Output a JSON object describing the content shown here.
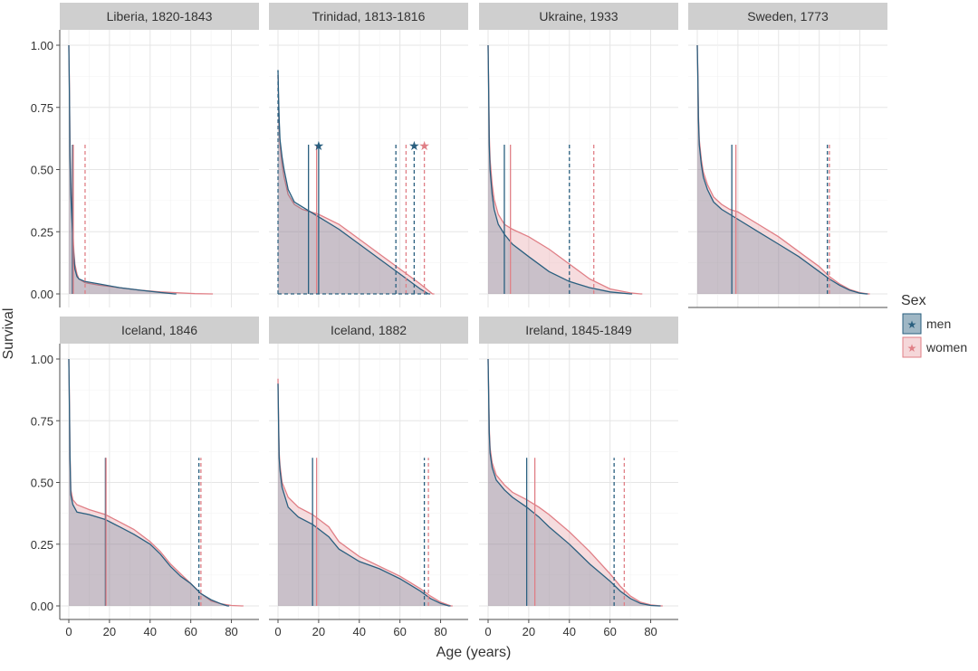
{
  "colors": {
    "men": "#2a5f7f",
    "women": "#e07f86",
    "men_fill": "#2a5f7f",
    "women_fill": "#e59aa0",
    "strip": "#cfcfcf",
    "grid": "#e5e5e5",
    "axis": "#4d4d4d",
    "text": "#333333"
  },
  "chart_data": {
    "type": "area",
    "title": "",
    "xlabel": "Age (years)",
    "ylabel": "Survival",
    "xlim": [
      0,
      90
    ],
    "ylim": [
      0,
      1
    ],
    "xticks": [
      0,
      20,
      40,
      60,
      80
    ],
    "xtick_labels": [
      "0",
      "20",
      "40",
      "60",
      "80"
    ],
    "yticks": [
      0,
      0.25,
      0.5,
      0.75,
      1
    ],
    "ytick_labels": [
      "0.00",
      "0.25",
      "0.50",
      "0.75",
      "1.00"
    ],
    "legend": {
      "title": "Sex",
      "placement": "right",
      "entries": [
        {
          "key": "men",
          "label": "men"
        },
        {
          "key": "women",
          "label": "women"
        }
      ]
    },
    "panels": [
      {
        "title": "Liberia, 1820-1843",
        "series": [
          {
            "name": "men",
            "x": [
              0,
              0.3,
              0.6,
              1,
              1.5,
              2,
              2.5,
              3,
              4,
              5,
              8,
              15,
              25,
              35,
              45,
              52
            ],
            "y": [
              1,
              0.8,
              0.55,
              0.4,
              0.3,
              0.22,
              0.15,
              0.1,
              0.07,
              0.06,
              0.05,
              0.04,
              0.025,
              0.015,
              0.006,
              0
            ]
          },
          {
            "name": "women",
            "x": [
              0,
              0.3,
              0.6,
              1,
              1.5,
              2,
              2.5,
              3,
              4,
              5,
              8,
              15,
              25,
              35,
              45,
              55,
              62,
              70
            ],
            "y": [
              1,
              0.82,
              0.6,
              0.45,
              0.33,
              0.25,
              0.17,
              0.12,
              0.08,
              0.06,
              0.045,
              0.035,
              0.025,
              0.015,
              0.008,
              0.004,
              0.001,
              0
            ]
          }
        ],
        "markers": [
          {
            "sex": "men",
            "stat": "median",
            "age": 1.8,
            "style": "solid"
          },
          {
            "sex": "women",
            "stat": "median",
            "age": 2.2,
            "style": "solid"
          },
          {
            "sex": "women",
            "stat": "mean",
            "age": 8,
            "style": "dashed"
          }
        ]
      },
      {
        "title": "Trinidad, 1813-1816",
        "series": [
          {
            "name": "men",
            "x": [
              0,
              0.3,
              0.6,
              1,
              2,
              3,
              5,
              8,
              12,
              16,
              20,
              30,
              40,
              50,
              60,
              70,
              74
            ],
            "y": [
              0.9,
              0.78,
              0.7,
              0.62,
              0.55,
              0.5,
              0.42,
              0.37,
              0.35,
              0.33,
              0.31,
              0.26,
              0.2,
              0.14,
              0.08,
              0.02,
              0
            ]
          },
          {
            "name": "women",
            "x": [
              0,
              0.3,
              0.6,
              1,
              2,
              3,
              5,
              8,
              12,
              16,
              20,
              30,
              40,
              50,
              60,
              70,
              76
            ],
            "y": [
              0.88,
              0.76,
              0.68,
              0.6,
              0.52,
              0.47,
              0.4,
              0.36,
              0.34,
              0.33,
              0.32,
              0.28,
              0.22,
              0.16,
              0.1,
              0.04,
              0
            ]
          }
        ],
        "markers": [
          {
            "sex": "men",
            "stat": "median",
            "age": 15,
            "style": "solid"
          },
          {
            "sex": "women",
            "stat": "median",
            "age": 19,
            "style": "solid"
          },
          {
            "sex": "men",
            "stat": "median",
            "age": 20,
            "style": "solid"
          },
          {
            "sex": "men",
            "stat": "mean",
            "age": 58,
            "style": "dashed"
          },
          {
            "sex": "women",
            "stat": "mean",
            "age": 63,
            "style": "dashed"
          },
          {
            "sex": "men",
            "stat": "mean",
            "age": 67,
            "style": "dashed"
          },
          {
            "sex": "women",
            "stat": "mean",
            "age": 72,
            "style": "dashed"
          }
        ]
      },
      {
        "title": "Ukraine, 1933",
        "series": [
          {
            "name": "men",
            "x": [
              0,
              0.3,
              0.6,
              1,
              2,
              3,
              5,
              8,
              12,
              20,
              30,
              40,
              50,
              60,
              70
            ],
            "y": [
              1,
              0.8,
              0.6,
              0.5,
              0.4,
              0.34,
              0.28,
              0.24,
              0.2,
              0.15,
              0.09,
              0.05,
              0.025,
              0.008,
              0
            ]
          },
          {
            "name": "women",
            "x": [
              0,
              0.3,
              0.6,
              1,
              2,
              3,
              5,
              8,
              12,
              20,
              30,
              40,
              50,
              60,
              70,
              75
            ],
            "y": [
              1,
              0.82,
              0.64,
              0.54,
              0.44,
              0.38,
              0.32,
              0.28,
              0.26,
              0.23,
              0.18,
              0.12,
              0.06,
              0.02,
              0.004,
              0
            ]
          }
        ],
        "markers": [
          {
            "sex": "men",
            "stat": "median",
            "age": 8,
            "style": "solid"
          },
          {
            "sex": "women",
            "stat": "median",
            "age": 11,
            "style": "solid"
          },
          {
            "sex": "men",
            "stat": "mean",
            "age": 40,
            "style": "dashed"
          },
          {
            "sex": "women",
            "stat": "mean",
            "age": 52,
            "style": "dashed"
          }
        ]
      },
      {
        "title": "Sweden, 1773",
        "series": [
          {
            "name": "men",
            "x": [
              0,
              0.3,
              0.6,
              1,
              2,
              3,
              5,
              8,
              12,
              16,
              20,
              30,
              40,
              50,
              60,
              65,
              70,
              75,
              80,
              83
            ],
            "y": [
              1,
              0.86,
              0.7,
              0.6,
              0.52,
              0.47,
              0.42,
              0.37,
              0.34,
              0.32,
              0.3,
              0.25,
              0.2,
              0.15,
              0.09,
              0.06,
              0.035,
              0.015,
              0.003,
              0
            ]
          },
          {
            "name": "women",
            "x": [
              0,
              0.3,
              0.6,
              1,
              2,
              3,
              5,
              8,
              12,
              16,
              20,
              30,
              40,
              50,
              60,
              65,
              70,
              75,
              80,
              84
            ],
            "y": [
              1,
              0.88,
              0.72,
              0.62,
              0.54,
              0.49,
              0.44,
              0.39,
              0.36,
              0.34,
              0.33,
              0.28,
              0.23,
              0.17,
              0.11,
              0.07,
              0.04,
              0.018,
              0.005,
              0
            ]
          }
        ],
        "markers": [
          {
            "sex": "men",
            "stat": "median",
            "age": 17,
            "style": "solid"
          },
          {
            "sex": "women",
            "stat": "median",
            "age": 19,
            "style": "solid"
          },
          {
            "sex": "men",
            "stat": "mean",
            "age": 64,
            "style": "dashed"
          },
          {
            "sex": "women",
            "stat": "mean",
            "age": 65,
            "style": "dashed"
          }
        ]
      },
      {
        "title": "Iceland, 1846",
        "series": [
          {
            "name": "men",
            "x": [
              0,
              0.3,
              0.6,
              1,
              2,
              4,
              10,
              18,
              25,
              32,
              40,
              45,
              50,
              55,
              60,
              65,
              70,
              75,
              78
            ],
            "y": [
              1,
              0.8,
              0.6,
              0.45,
              0.41,
              0.38,
              0.37,
              0.35,
              0.32,
              0.29,
              0.25,
              0.21,
              0.16,
              0.12,
              0.09,
              0.05,
              0.025,
              0.008,
              0
            ]
          },
          {
            "name": "women",
            "x": [
              0,
              0.3,
              0.6,
              1,
              2,
              4,
              10,
              18,
              25,
              32,
              40,
              45,
              50,
              55,
              60,
              65,
              70,
              75,
              80,
              85
            ],
            "y": [
              1,
              0.82,
              0.62,
              0.47,
              0.43,
              0.41,
              0.39,
              0.37,
              0.34,
              0.31,
              0.26,
              0.22,
              0.17,
              0.13,
              0.09,
              0.05,
              0.02,
              0.008,
              0.002,
              0
            ]
          }
        ],
        "markers": [
          {
            "sex": "men",
            "stat": "median",
            "age": 18,
            "style": "solid"
          },
          {
            "sex": "women",
            "stat": "median",
            "age": 18.3,
            "style": "solid"
          },
          {
            "sex": "men",
            "stat": "mean",
            "age": 64,
            "style": "dashed"
          },
          {
            "sex": "women",
            "stat": "mean",
            "age": 65,
            "style": "dashed"
          }
        ]
      },
      {
        "title": "Iceland, 1882",
        "series": [
          {
            "name": "men",
            "x": [
              0,
              0.3,
              0.6,
              1,
              2,
              5,
              10,
              17,
              25,
              30,
              40,
              50,
              60,
              70,
              75,
              80,
              84
            ],
            "y": [
              0.9,
              0.72,
              0.6,
              0.55,
              0.48,
              0.4,
              0.36,
              0.33,
              0.28,
              0.23,
              0.18,
              0.15,
              0.11,
              0.06,
              0.03,
              0.01,
              0
            ]
          },
          {
            "name": "women",
            "x": [
              0,
              0.3,
              0.6,
              1,
              2,
              5,
              10,
              17,
              25,
              30,
              40,
              50,
              60,
              70,
              75,
              80,
              85
            ],
            "y": [
              0.92,
              0.74,
              0.62,
              0.57,
              0.5,
              0.44,
              0.4,
              0.37,
              0.32,
              0.26,
              0.2,
              0.16,
              0.12,
              0.07,
              0.04,
              0.015,
              0
            ]
          }
        ],
        "markers": [
          {
            "sex": "men",
            "stat": "median",
            "age": 17,
            "style": "solid"
          },
          {
            "sex": "women",
            "stat": "median",
            "age": 19,
            "style": "solid"
          },
          {
            "sex": "men",
            "stat": "mean",
            "age": 72,
            "style": "dashed"
          },
          {
            "sex": "women",
            "stat": "mean",
            "age": 74,
            "style": "dashed"
          }
        ]
      },
      {
        "title": "Ireland, 1845-1849",
        "series": [
          {
            "name": "men",
            "x": [
              0,
              0.3,
              0.6,
              1,
              2,
              4,
              8,
              12,
              19,
              25,
              30,
              40,
              50,
              60,
              65,
              70,
              75,
              80,
              84
            ],
            "y": [
              1,
              0.84,
              0.7,
              0.62,
              0.56,
              0.51,
              0.47,
              0.44,
              0.4,
              0.36,
              0.32,
              0.25,
              0.17,
              0.1,
              0.06,
              0.03,
              0.01,
              0.002,
              0
            ]
          },
          {
            "name": "women",
            "x": [
              0,
              0.3,
              0.6,
              1,
              2,
              4,
              8,
              12,
              19,
              25,
              30,
              40,
              50,
              60,
              65,
              70,
              75,
              80,
              85
            ],
            "y": [
              1,
              0.86,
              0.72,
              0.64,
              0.58,
              0.53,
              0.49,
              0.46,
              0.43,
              0.4,
              0.37,
              0.3,
              0.22,
              0.13,
              0.08,
              0.04,
              0.015,
              0.004,
              0
            ]
          }
        ],
        "markers": [
          {
            "sex": "men",
            "stat": "median",
            "age": 19,
            "style": "solid"
          },
          {
            "sex": "women",
            "stat": "median",
            "age": 23,
            "style": "solid"
          },
          {
            "sex": "men",
            "stat": "mean",
            "age": 62,
            "style": "dashed"
          },
          {
            "sex": "women",
            "stat": "mean",
            "age": 67,
            "style": "dashed"
          }
        ]
      }
    ]
  }
}
